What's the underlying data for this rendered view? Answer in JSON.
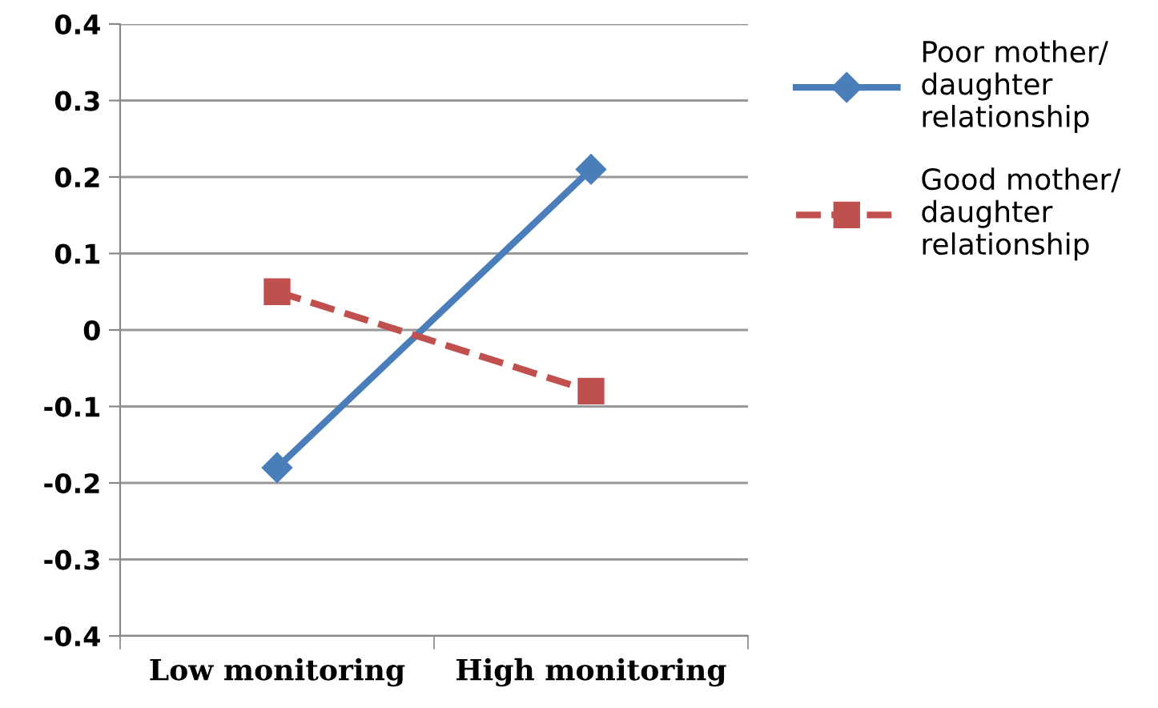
{
  "chart_data": {
    "type": "line",
    "categories": [
      "Low monitoring",
      "High monitoring"
    ],
    "series": [
      {
        "name": "Poor mother/\ndaughter\nrelationship",
        "color": "#4a7ebb",
        "values": [
          -0.18,
          0.21
        ],
        "marker": "diamond",
        "line_style": "solid"
      },
      {
        "name": "Good mother/\ndaughter\nrelationship",
        "color": "#c0504d",
        "values": [
          0.05,
          -0.08
        ],
        "marker": "square",
        "line_style": "dashed"
      }
    ],
    "ylim": [
      -0.4,
      0.4
    ],
    "yticks": [
      -0.4,
      -0.3,
      -0.2,
      -0.1,
      0,
      0.1,
      0.2,
      0.3,
      0.4
    ],
    "grid": "y",
    "legend": "top right"
  }
}
